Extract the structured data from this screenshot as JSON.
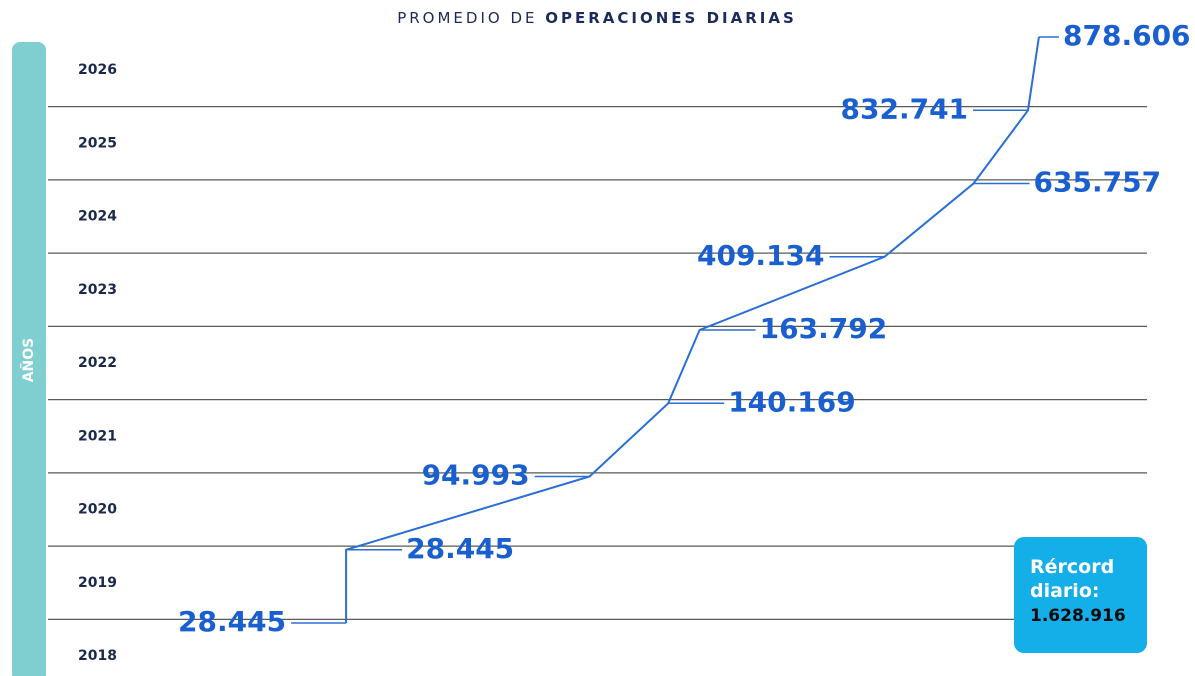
{
  "chart_data": {
    "type": "line",
    "title": [
      "PROMEDIO DE",
      "OPERACIONES DIARIAS"
    ],
    "y_label": "AÑOS",
    "categories": [
      2018,
      2019,
      2020,
      2021,
      2022,
      2023,
      2024,
      2025,
      2026
    ],
    "series": [
      {
        "name": null,
        "color": "#2a6fd6",
        "values": [
          28445,
          28445,
          94993,
          140169,
          163792,
          409134,
          635757,
          832741,
          878606
        ],
        "value_labels": [
          "28.445",
          "28.445",
          "94.993",
          "140.169",
          "163.792",
          "409.134",
          "635.757",
          "832.741",
          "878.606"
        ]
      }
    ],
    "xscale": "log",
    "xlim": [
      10000,
      1000000
    ],
    "grid": true,
    "annotation": {
      "label": "Rércord diario:",
      "value": "1.628.916"
    }
  }
}
